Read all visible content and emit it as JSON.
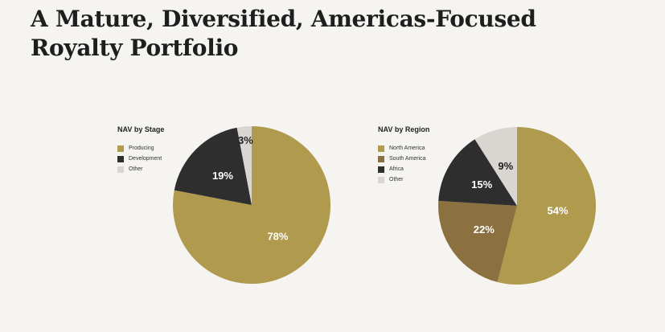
{
  "title_lines": [
    "A Mature, Diversified, Americas-Focused",
    "Royalty Portfolio"
  ],
  "chart_data": [
    {
      "type": "pie",
      "title": "NAV by Stage",
      "legend_placement": "left",
      "slices": [
        {
          "label": "Producing",
          "value": 78,
          "display": "78%",
          "color": "#b09a4d"
        },
        {
          "label": "Development",
          "value": 19,
          "display": "19%",
          "color": "#2e2e2e"
        },
        {
          "label": "Other",
          "value": 3,
          "display": "3%",
          "color": "#d9d6d1"
        }
      ]
    },
    {
      "type": "pie",
      "title": "NAV by Region",
      "legend_placement": "left",
      "slices": [
        {
          "label": "North America",
          "value": 54,
          "display": "54%",
          "color": "#b09a4d"
        },
        {
          "label": "South America",
          "value": 22,
          "display": "22%",
          "color": "#8a713f"
        },
        {
          "label": "Africa",
          "value": 15,
          "display": "15%",
          "color": "#2e2e2e"
        },
        {
          "label": "Other",
          "value": 9,
          "display": "9%",
          "color": "#d9d6d1"
        }
      ]
    }
  ]
}
